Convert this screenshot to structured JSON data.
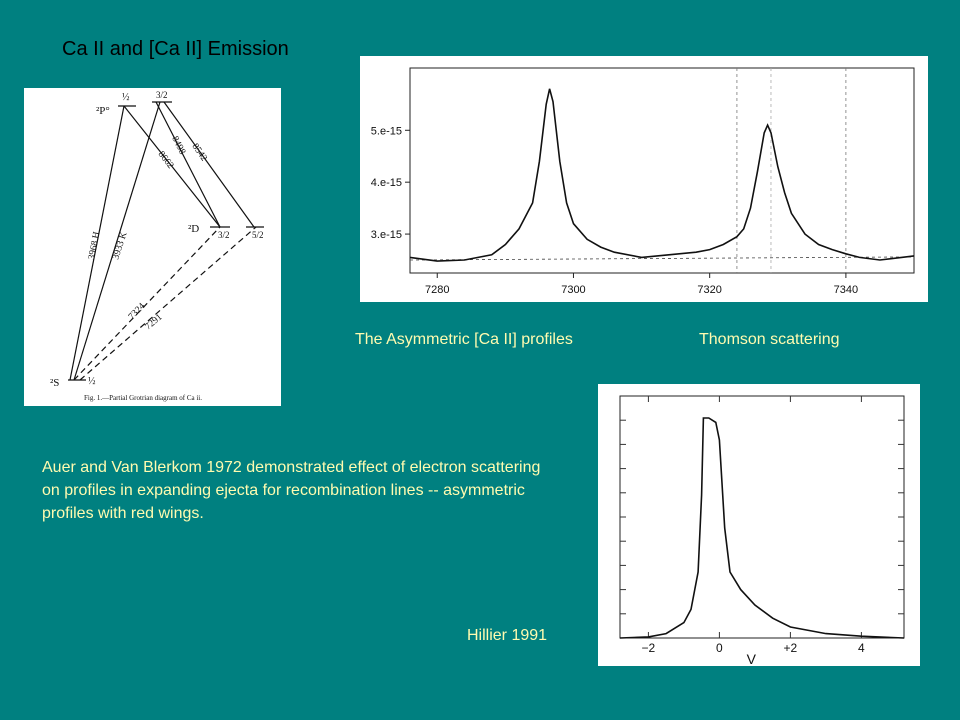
{
  "slide": {
    "title": "Ca II and [Ca II] Emission",
    "caption_profiles": "The Asymmetric [Ca II] profiles",
    "caption_thomson": "Thomson scattering",
    "caption_hillier": "Hillier 1991",
    "body": "Auer and Van Blerkom 1972 demonstrated effect of electron scattering on profiles in expanding ejecta for recombination lines --  asymmetric profiles with red wings.",
    "colors": {
      "background": "#008080",
      "title": "#000000",
      "text": "#fffbb0"
    }
  },
  "grotrian": {
    "caption": "Fig. 1.—Partial Grotrian diagram of Ca ii.",
    "levels": {
      "p_label": "²P°",
      "p_half": "½",
      "p_three_half": "3/2",
      "d_label": "²D",
      "d_three_half": "3/2",
      "d_five_half": "5/2",
      "s_label": "²S",
      "s_half": "½"
    },
    "transitions": [
      "3968 H",
      "3933 K",
      "8662",
      "8498",
      "8542",
      "7324",
      "7291"
    ]
  },
  "chart_data": [
    {
      "type": "line",
      "title": "",
      "xlabel": "",
      "ylabel": "",
      "xlim": [
        7276,
        7350
      ],
      "ylim": [
        2.25e-15,
        6.2e-15
      ],
      "xticks": [
        7280,
        7300,
        7320,
        7340
      ],
      "xtick_labels": [
        "7280",
        "7300",
        "7320",
        "7340"
      ],
      "yticks": [
        5e-15,
        4e-15,
        3e-15
      ],
      "ytick_labels": [
        "5.e-15",
        "4.e-15",
        "3.e-15"
      ],
      "x": [
        7276,
        7280,
        7284,
        7288,
        7290,
        7292,
        7294,
        7295,
        7296,
        7296.5,
        7297,
        7298,
        7299,
        7300,
        7302,
        7304,
        7306,
        7310,
        7314,
        7318,
        7320,
        7322,
        7324,
        7325,
        7326,
        7327,
        7328,
        7328.5,
        7329,
        7330,
        7331,
        7332,
        7334,
        7336,
        7338,
        7340,
        7342,
        7345,
        7350
      ],
      "y": [
        2.55e-15,
        2.48e-15,
        2.5e-15,
        2.6e-15,
        2.8e-15,
        3.1e-15,
        3.6e-15,
        4.4e-15,
        5.5e-15,
        5.8e-15,
        5.55e-15,
        4.4e-15,
        3.6e-15,
        3.2e-15,
        2.9e-15,
        2.75e-15,
        2.65e-15,
        2.55e-15,
        2.6e-15,
        2.65e-15,
        2.7e-15,
        2.8e-15,
        2.95e-15,
        3.1e-15,
        3.5e-15,
        4.2e-15,
        4.95e-15,
        5.1e-15,
        4.95e-15,
        4.3e-15,
        3.8e-15,
        3.4e-15,
        3e-15,
        2.8e-15,
        2.7e-15,
        2.62e-15,
        2.55e-15,
        2.5e-15,
        2.58e-15
      ],
      "continuum": [
        2.5e-15,
        2.56e-15
      ],
      "vlines": [
        7324,
        7329,
        7340
      ],
      "grid": false
    },
    {
      "type": "line",
      "title": "",
      "xlabel": "V",
      "ylabel": "",
      "xlim": [
        -2.8,
        5.2
      ],
      "ylim": [
        0,
        1.1
      ],
      "xticks": [
        -2,
        0,
        2,
        4
      ],
      "xtick_labels": [
        "−2",
        "0",
        "+2",
        "4"
      ],
      "x": [
        -2.8,
        -2.0,
        -1.5,
        -1.0,
        -0.8,
        -0.6,
        -0.5,
        -0.45,
        -0.3,
        -0.1,
        0.0,
        0.15,
        0.3,
        0.6,
        1.0,
        1.5,
        2.0,
        3.0,
        4.0,
        5.2
      ],
      "y": [
        0.0,
        0.005,
        0.02,
        0.07,
        0.13,
        0.3,
        0.65,
        1.0,
        1.0,
        0.98,
        0.9,
        0.5,
        0.3,
        0.22,
        0.15,
        0.09,
        0.05,
        0.02,
        0.008,
        0.0
      ],
      "grid": false
    }
  ]
}
